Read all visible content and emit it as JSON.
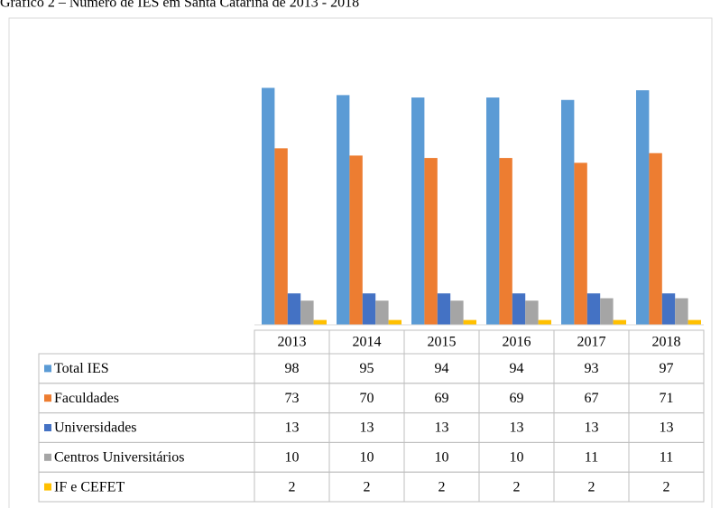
{
  "chart_data": {
    "type": "bar",
    "title": "Gráfico 2 – Número de IES em Santa Catarina de 2013 - 2018",
    "categories": [
      "2013",
      "2014",
      "2015",
      "2016",
      "2017",
      "2018"
    ],
    "series": [
      {
        "name": "Total IES",
        "color": "#5b9bd5",
        "values": [
          98,
          95,
          94,
          94,
          93,
          97
        ]
      },
      {
        "name": "Faculdades",
        "color": "#ed7d31",
        "values": [
          73,
          70,
          69,
          69,
          67,
          71
        ]
      },
      {
        "name": "Universidades",
        "color": "#4472c4",
        "values": [
          13,
          13,
          13,
          13,
          13,
          13
        ]
      },
      {
        "name": "Centros Universitários",
        "color": "#a5a5a5",
        "values": [
          10,
          10,
          10,
          10,
          11,
          11
        ]
      },
      {
        "name": "IF e CEFET",
        "color": "#ffc000",
        "values": [
          2,
          2,
          2,
          2,
          2,
          2
        ]
      }
    ],
    "ylim": [
      0,
      100
    ]
  }
}
